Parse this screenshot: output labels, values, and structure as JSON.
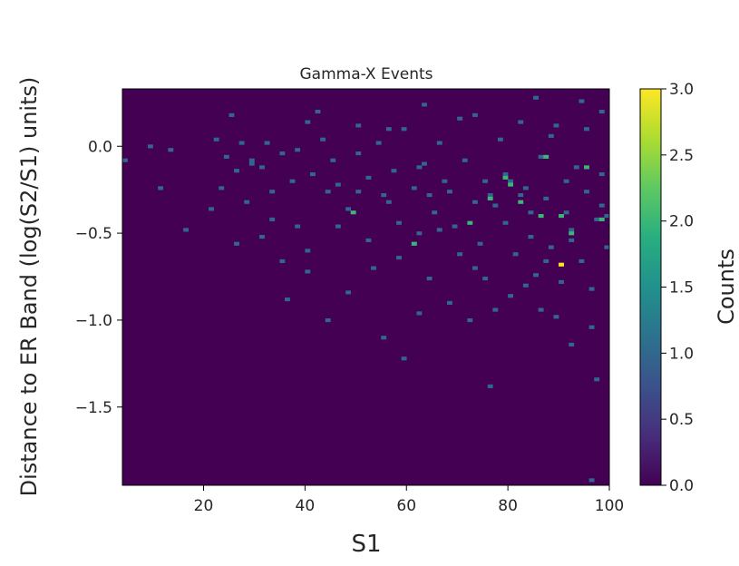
{
  "chart_data": {
    "type": "heatmap",
    "title": "Gamma-X Events",
    "xlabel": "S1",
    "ylabel": "Distance to ER Band (log(S2/S1) units)",
    "xlim": [
      4,
      100
    ],
    "ylim": [
      -1.95,
      0.33
    ],
    "x_ticks": [
      "20",
      "40",
      "60",
      "80",
      "100"
    ],
    "x_tick_values": [
      20,
      40,
      60,
      80,
      100
    ],
    "y_ticks": [
      "0.0",
      "−0.5",
      "−1.0",
      "−1.5"
    ],
    "y_tick_values": [
      0.0,
      -0.5,
      -1.0,
      -1.5
    ],
    "colorbar": {
      "label": "Counts",
      "range": [
        0,
        3
      ],
      "ticks": [
        "0.0",
        "0.5",
        "1.0",
        "1.5",
        "2.0",
        "2.5",
        "3.0"
      ],
      "tick_values": [
        0,
        0.5,
        1.0,
        1.5,
        2.0,
        2.5,
        3.0
      ],
      "colormap": "viridis"
    },
    "bins": {
      "x": 96,
      "y": 114
    },
    "background_count": 0,
    "points": [
      [
        25.2,
        0.17,
        1
      ],
      [
        22.6,
        0.04,
        1
      ],
      [
        24.3,
        -0.07,
        1
      ],
      [
        26.0,
        -0.14,
        1
      ],
      [
        27.8,
        0.01,
        1
      ],
      [
        29.4,
        -0.1,
        1
      ],
      [
        31.2,
        -0.13,
        1
      ],
      [
        33.0,
        -0.27,
        1
      ],
      [
        35.2,
        -0.05,
        1
      ],
      [
        38.0,
        -0.03,
        1
      ],
      [
        40.2,
        0.13,
        1
      ],
      [
        41.1,
        -0.16,
        1
      ],
      [
        43.4,
        0.04,
        1
      ],
      [
        45.0,
        -0.09,
        1
      ],
      [
        46.6,
        -0.22,
        1
      ],
      [
        48.4,
        -0.36,
        1
      ],
      [
        50.2,
        -0.04,
        1
      ],
      [
        52.3,
        -0.18,
        1
      ],
      [
        54.4,
        0.01,
        1
      ],
      [
        55.2,
        -0.29,
        1
      ],
      [
        57.6,
        -0.14,
        1
      ],
      [
        59.3,
        0.09,
        1
      ],
      [
        61.1,
        -0.24,
        1
      ],
      [
        61.2,
        -0.57,
        1
      ],
      [
        63.5,
        -0.11,
        1
      ],
      [
        65.0,
        -0.38,
        1
      ],
      [
        66.2,
        0.02,
        1
      ],
      [
        67.8,
        -0.2,
        1
      ],
      [
        69.5,
        -0.46,
        1
      ],
      [
        70.4,
        0.15,
        1
      ],
      [
        71.8,
        -0.09,
        1
      ],
      [
        73.1,
        -0.33,
        1
      ],
      [
        74.5,
        -0.57,
        1
      ],
      [
        76.1,
        -0.28,
        1
      ],
      [
        77.2,
        -0.35,
        1
      ],
      [
        78.0,
        0.04,
        1
      ],
      [
        79.5,
        -0.45,
        1
      ],
      [
        80.2,
        -0.2,
        1
      ],
      [
        81.6,
        -0.62,
        1
      ],
      [
        82.0,
        0.13,
        1
      ],
      [
        83.4,
        -0.24,
        1
      ],
      [
        84.7,
        -0.52,
        1
      ],
      [
        85.5,
        -0.74,
        1
      ],
      [
        86.1,
        -0.07,
        1
      ],
      [
        87.5,
        -0.31,
        1
      ],
      [
        88.2,
        0.06,
        1
      ],
      [
        88.9,
        -0.58,
        1
      ],
      [
        90.2,
        -0.78,
        1
      ],
      [
        91.0,
        -0.2,
        1
      ],
      [
        91.8,
        -0.38,
        1
      ],
      [
        92.6,
        -0.48,
        1
      ],
      [
        93.4,
        -0.12,
        1
      ],
      [
        94.1,
        -0.66,
        1
      ],
      [
        95.0,
        -0.27,
        1
      ],
      [
        95.6,
        0.09,
        1
      ],
      [
        96.4,
        -0.82,
        1
      ],
      [
        97.2,
        -0.43,
        1
      ],
      [
        98.0,
        -0.17,
        1
      ],
      [
        98.8,
        0.19,
        1
      ],
      [
        99.4,
        -0.58,
        1
      ],
      [
        99.5,
        -0.4,
        1
      ],
      [
        62.3,
        -0.5,
        1
      ],
      [
        53.1,
        -0.7,
        1
      ],
      [
        48.2,
        -0.85,
        1
      ],
      [
        44.0,
        -1.0,
        1
      ],
      [
        55.6,
        -1.11,
        1
      ],
      [
        62.6,
        -0.97,
        1
      ],
      [
        68.2,
        -0.9,
        1
      ],
      [
        72.4,
        -1.0,
        1
      ],
      [
        77.9,
        -0.94,
        1
      ],
      [
        83.2,
        -0.8,
        1
      ],
      [
        89.2,
        -0.98,
        1
      ],
      [
        96.4,
        -1.05,
        1
      ],
      [
        56.6,
        -0.33,
        1
      ],
      [
        58.8,
        -0.64,
        1
      ],
      [
        64.4,
        -0.77,
        1
      ],
      [
        70.2,
        -0.63,
        1
      ],
      [
        75.4,
        -0.76,
        1
      ],
      [
        80.6,
        -0.87,
        1
      ],
      [
        86.4,
        -0.94,
        1
      ],
      [
        92.4,
        -1.15,
        1
      ],
      [
        97.0,
        -1.33,
        1
      ],
      [
        76.5,
        -1.39,
        1
      ],
      [
        59.4,
        -1.22,
        1
      ],
      [
        36.2,
        -0.88,
        1
      ],
      [
        40.5,
        -0.73,
        1
      ],
      [
        40.7,
        -0.6,
        1
      ],
      [
        38.7,
        -0.46,
        1
      ],
      [
        33.5,
        -0.42,
        1
      ],
      [
        31.1,
        -0.53,
        1
      ],
      [
        28.4,
        -0.32,
        1
      ],
      [
        26.5,
        -0.56,
        1
      ],
      [
        23.4,
        -0.25,
        1
      ],
      [
        21.6,
        -0.37,
        1
      ],
      [
        16.9,
        -0.49,
        1
      ],
      [
        13.8,
        -0.03,
        1
      ],
      [
        9.3,
        0.0,
        1
      ],
      [
        4.8,
        -0.08,
        1
      ],
      [
        11.5,
        -0.24,
        1
      ],
      [
        35.1,
        -0.67,
        1
      ],
      [
        64.3,
        -0.28,
        1
      ],
      [
        66.8,
        -0.49,
        1
      ],
      [
        73.0,
        -0.7,
        1
      ],
      [
        79.1,
        -0.17,
        1
      ],
      [
        84.3,
        -0.38,
        1
      ],
      [
        87.0,
        -0.66,
        1
      ],
      [
        92.6,
        -0.55,
        1
      ],
      [
        98.6,
        -0.35,
        1
      ],
      [
        82.4,
        -0.28,
        1
      ],
      [
        75.4,
        -0.21,
        1
      ],
      [
        68.7,
        -0.26,
        1
      ],
      [
        62.1,
        -0.12,
        1
      ],
      [
        56.6,
        0.1,
        1
      ],
      [
        50.5,
        -0.26,
        1
      ],
      [
        46.4,
        -0.46,
        1
      ],
      [
        44.5,
        -0.26,
        1
      ],
      [
        37.0,
        -0.21,
        1
      ],
      [
        32.5,
        0.02,
        1
      ],
      [
        29.2,
        -0.08,
        1
      ],
      [
        52.6,
        -0.55,
        1
      ],
      [
        58.0,
        -0.45,
        1
      ],
      [
        89.0,
        0.12,
        1
      ],
      [
        94.6,
        0.26,
        1
      ],
      [
        85.6,
        0.27,
        1
      ],
      [
        73.4,
        0.18,
        1
      ],
      [
        63.0,
        0.23,
        1
      ],
      [
        50.0,
        0.11,
        1
      ],
      [
        42.4,
        0.19,
        1
      ],
      [
        96.0,
        -1.93,
        1
      ],
      [
        49.8,
        -0.39,
        2
      ],
      [
        61.3,
        -0.56,
        2
      ],
      [
        72.5,
        -0.45,
        2
      ],
      [
        76.2,
        -0.3,
        2
      ],
      [
        79.9,
        -0.18,
        2
      ],
      [
        80.8,
        -0.23,
        2
      ],
      [
        82.6,
        -0.33,
        2
      ],
      [
        86.5,
        -0.4,
        2
      ],
      [
        87.7,
        -0.07,
        2
      ],
      [
        90.3,
        -0.41,
        2
      ],
      [
        92.1,
        -0.51,
        2
      ],
      [
        95.1,
        -0.12,
        2
      ],
      [
        98.3,
        -0.43,
        2
      ],
      [
        90.4,
        -0.69,
        3
      ]
    ]
  }
}
